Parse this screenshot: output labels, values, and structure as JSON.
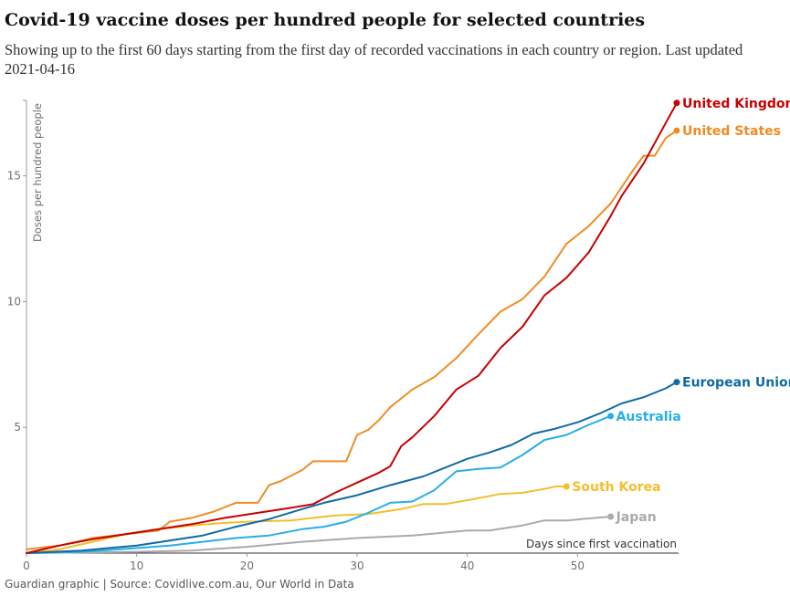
{
  "title": "Covid-19 vaccine doses per hundred people for selected countries",
  "subtitle": "Showing up to the first 60 days starting from the first day of recorded vaccinations in each country or region. Last updated 2021-04-16",
  "footer": "Guardian graphic | Source: Covidlive.com.au, Our World in Data",
  "chart_data": {
    "type": "line",
    "xlabel": "Days since first vaccination",
    "ylabel": "Doses per hundred people",
    "xlim": [
      0,
      59
    ],
    "ylim": [
      0,
      18
    ],
    "x_ticks": [
      0,
      10,
      20,
      30,
      40,
      50
    ],
    "y_ticks": [
      5,
      10,
      15
    ],
    "legend": "end-of-line labels",
    "grid": false,
    "series": [
      {
        "name": "Japan",
        "color": "#aaaaaa",
        "points": [
          [
            0,
            0
          ],
          [
            10,
            0.05
          ],
          [
            15,
            0.1
          ],
          [
            20,
            0.25
          ],
          [
            25,
            0.45
          ],
          [
            30,
            0.6
          ],
          [
            35,
            0.7
          ],
          [
            40,
            0.9
          ],
          [
            42,
            0.9
          ],
          [
            45,
            1.1
          ],
          [
            47,
            1.3
          ],
          [
            49,
            1.3
          ],
          [
            53,
            1.45
          ]
        ]
      },
      {
        "name": "South Korea",
        "color": "#f5be2c",
        "points": [
          [
            0,
            0
          ],
          [
            3,
            0.15
          ],
          [
            6,
            0.45
          ],
          [
            9,
            0.75
          ],
          [
            12,
            0.95
          ],
          [
            15,
            1.1
          ],
          [
            18,
            1.2
          ],
          [
            20,
            1.25
          ],
          [
            24,
            1.3
          ],
          [
            26,
            1.4
          ],
          [
            28,
            1.5
          ],
          [
            31,
            1.55
          ],
          [
            34,
            1.75
          ],
          [
            36,
            1.95
          ],
          [
            38,
            1.95
          ],
          [
            40,
            2.1
          ],
          [
            43,
            2.35
          ],
          [
            45,
            2.4
          ],
          [
            47,
            2.55
          ],
          [
            48,
            2.65
          ],
          [
            49,
            2.65
          ]
        ]
      },
      {
        "name": "Australia",
        "color": "#27aee8",
        "points": [
          [
            0,
            0
          ],
          [
            5,
            0.05
          ],
          [
            10,
            0.2
          ],
          [
            13,
            0.3
          ],
          [
            16,
            0.45
          ],
          [
            19,
            0.6
          ],
          [
            22,
            0.7
          ],
          [
            25,
            0.95
          ],
          [
            27,
            1.05
          ],
          [
            29,
            1.25
          ],
          [
            31,
            1.6
          ],
          [
            33,
            2.0
          ],
          [
            35,
            2.05
          ],
          [
            37,
            2.5
          ],
          [
            39,
            3.25
          ],
          [
            41,
            3.35
          ],
          [
            43,
            3.4
          ],
          [
            45,
            3.9
          ],
          [
            47,
            4.5
          ],
          [
            49,
            4.7
          ],
          [
            51,
            5.1
          ],
          [
            53,
            5.45
          ]
        ]
      },
      {
        "name": "European Union",
        "color": "#0f6aa5",
        "points": [
          [
            0,
            0
          ],
          [
            5,
            0.1
          ],
          [
            10,
            0.3
          ],
          [
            13,
            0.5
          ],
          [
            16,
            0.7
          ],
          [
            19,
            1.05
          ],
          [
            22,
            1.35
          ],
          [
            25,
            1.75
          ],
          [
            27,
            2.0
          ],
          [
            30,
            2.3
          ],
          [
            33,
            2.7
          ],
          [
            36,
            3.05
          ],
          [
            38,
            3.4
          ],
          [
            40,
            3.75
          ],
          [
            42,
            4.0
          ],
          [
            44,
            4.3
          ],
          [
            46,
            4.75
          ],
          [
            48,
            4.95
          ],
          [
            50,
            5.2
          ],
          [
            52,
            5.55
          ],
          [
            54,
            5.95
          ],
          [
            56,
            6.2
          ],
          [
            58,
            6.55
          ],
          [
            59,
            6.8
          ]
        ]
      },
      {
        "name": "United States",
        "color": "#f08c23",
        "points": [
          [
            0,
            0.15
          ],
          [
            3,
            0.3
          ],
          [
            6,
            0.6
          ],
          [
            9,
            0.75
          ],
          [
            12,
            0.9
          ],
          [
            13,
            1.25
          ],
          [
            15,
            1.4
          ],
          [
            17,
            1.65
          ],
          [
            19,
            2.0
          ],
          [
            21,
            2.0
          ],
          [
            22,
            2.7
          ],
          [
            23,
            2.85
          ],
          [
            25,
            3.3
          ],
          [
            26,
            3.65
          ],
          [
            28,
            3.65
          ],
          [
            29,
            3.65
          ],
          [
            30,
            4.7
          ],
          [
            31,
            4.9
          ],
          [
            32,
            5.3
          ],
          [
            33,
            5.8
          ],
          [
            35,
            6.5
          ],
          [
            37,
            7.0
          ],
          [
            39,
            7.75
          ],
          [
            41,
            8.7
          ],
          [
            43,
            9.6
          ],
          [
            45,
            10.1
          ],
          [
            47,
            11.0
          ],
          [
            49,
            12.3
          ],
          [
            51,
            13.0
          ],
          [
            53,
            13.9
          ],
          [
            55,
            15.2
          ],
          [
            56,
            15.8
          ],
          [
            57,
            15.8
          ],
          [
            58,
            16.5
          ],
          [
            59,
            16.8
          ]
        ]
      },
      {
        "name": "United Kingdom",
        "color": "#c70000",
        "points": [
          [
            0,
            0
          ],
          [
            3,
            0.3
          ],
          [
            6,
            0.55
          ],
          [
            9,
            0.75
          ],
          [
            12,
            0.95
          ],
          [
            15,
            1.15
          ],
          [
            18,
            1.4
          ],
          [
            21,
            1.6
          ],
          [
            24,
            1.8
          ],
          [
            26,
            1.95
          ],
          [
            28,
            2.4
          ],
          [
            30,
            2.8
          ],
          [
            32,
            3.2
          ],
          [
            33,
            3.45
          ],
          [
            34,
            4.25
          ],
          [
            35,
            4.6
          ],
          [
            37,
            5.45
          ],
          [
            39,
            6.5
          ],
          [
            41,
            7.05
          ],
          [
            43,
            8.15
          ],
          [
            45,
            9.0
          ],
          [
            47,
            10.25
          ],
          [
            49,
            10.95
          ],
          [
            51,
            11.95
          ],
          [
            53,
            13.4
          ],
          [
            54,
            14.2
          ],
          [
            56,
            15.5
          ],
          [
            58,
            17.1
          ],
          [
            59,
            17.9
          ]
        ]
      }
    ]
  }
}
